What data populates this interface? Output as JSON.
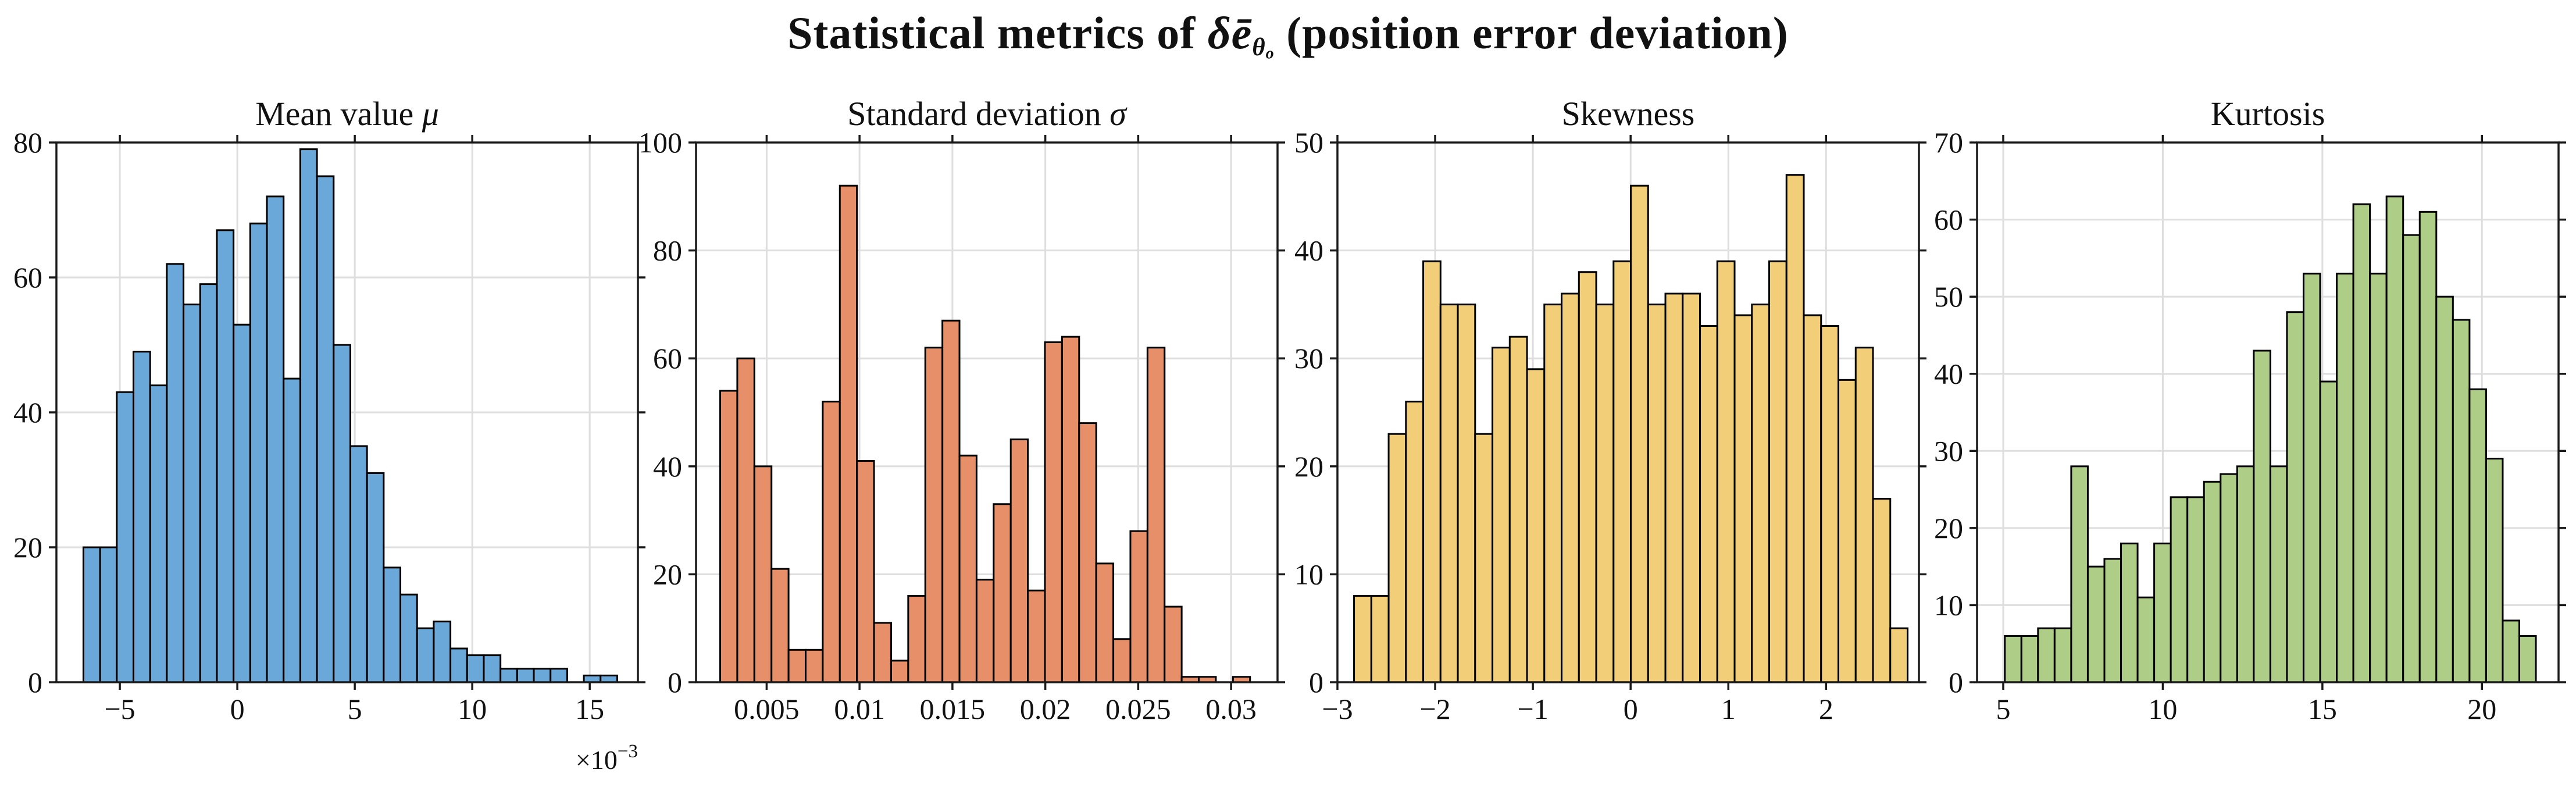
{
  "header": {
    "prefix": "Statistical metrics of ",
    "symbol": "δē",
    "symbol_sub": "θ",
    "symbol_subsub": "o",
    "suffix": " (position error deviation)"
  },
  "style": {
    "background": "#ffffff",
    "axis_color": "#1a1a1a",
    "grid_color": "#dedede",
    "bar_edge_color": "#000000",
    "text_color": "#111111"
  },
  "chart_data": [
    {
      "type": "bar",
      "title_text": "Mean value ",
      "title_math": "μ",
      "color": "#69a8d8",
      "legend_position": "none",
      "grid": true,
      "xlim": [
        -7.7,
        17.05
      ],
      "ylim": [
        0,
        80
      ],
      "yticks": [
        0,
        20,
        40,
        60,
        80
      ],
      "xticks": [
        {
          "v": -5,
          "label": "−5"
        },
        {
          "v": 0,
          "label": "0"
        },
        {
          "v": 5,
          "label": "5"
        },
        {
          "v": 10,
          "label": "10"
        },
        {
          "v": 15,
          "label": "15"
        }
      ],
      "x_exponent": {
        "text": "×10",
        "superscript": "−3"
      },
      "bin_start": -6.55,
      "bin_width": 0.71,
      "values": [
        20,
        20,
        43,
        49,
        44,
        62,
        56,
        59,
        67,
        53,
        68,
        72,
        45,
        79,
        75,
        50,
        35,
        31,
        17,
        13,
        8,
        9,
        5,
        4,
        4,
        2,
        2,
        2,
        2,
        0,
        1,
        1
      ]
    },
    {
      "type": "bar",
      "title_text": "Standard deviation ",
      "title_math": "σ",
      "color": "#e78f68",
      "legend_position": "none",
      "grid": true,
      "xlim": [
        0.0012,
        0.0325
      ],
      "ylim": [
        0,
        100
      ],
      "yticks": [
        0,
        20,
        40,
        60,
        80,
        100
      ],
      "xticks": [
        {
          "v": 0.005,
          "label": "0.005"
        },
        {
          "v": 0.01,
          "label": "0.01"
        },
        {
          "v": 0.015,
          "label": "0.015"
        },
        {
          "v": 0.02,
          "label": "0.02"
        },
        {
          "v": 0.025,
          "label": "0.025"
        },
        {
          "v": 0.03,
          "label": "0.03"
        }
      ],
      "bin_start": 0.0025,
      "bin_width": 0.00092,
      "values": [
        54,
        60,
        40,
        21,
        6,
        6,
        52,
        92,
        41,
        11,
        4,
        16,
        62,
        67,
        42,
        19,
        33,
        45,
        17,
        63,
        64,
        48,
        22,
        8,
        28,
        62,
        14,
        1,
        1,
        0,
        1
      ]
    },
    {
      "type": "bar",
      "title_text": "Skewness",
      "title_math": "",
      "color": "#f2ce78",
      "legend_position": "none",
      "grid": true,
      "xlim": [
        -3.0,
        2.95
      ],
      "ylim": [
        0,
        50
      ],
      "yticks": [
        0,
        10,
        20,
        30,
        40,
        50
      ],
      "xticks": [
        {
          "v": -3,
          "label": "−3"
        },
        {
          "v": -2,
          "label": "−2"
        },
        {
          "v": -1,
          "label": "−1"
        },
        {
          "v": 0,
          "label": "0"
        },
        {
          "v": 1,
          "label": "1"
        },
        {
          "v": 2,
          "label": "2"
        }
      ],
      "bin_start": -2.83,
      "bin_width": 0.177,
      "values": [
        8,
        8,
        23,
        26,
        39,
        35,
        35,
        23,
        31,
        32,
        29,
        35,
        36,
        38,
        35,
        39,
        46,
        35,
        36,
        36,
        33,
        39,
        34,
        35,
        39,
        47,
        34,
        33,
        28,
        31,
        17,
        5
      ]
    },
    {
      "type": "bar",
      "title_text": "Kurtosis",
      "title_math": "",
      "color": "#aecd86",
      "legend_position": "none",
      "grid": true,
      "xlim": [
        4.18,
        22.4
      ],
      "ylim": [
        0,
        70
      ],
      "yticks": [
        0,
        10,
        20,
        30,
        40,
        50,
        60,
        70
      ],
      "xticks": [
        {
          "v": 5,
          "label": "5"
        },
        {
          "v": 10,
          "label": "10"
        },
        {
          "v": 15,
          "label": "15"
        },
        {
          "v": 20,
          "label": "20"
        }
      ],
      "bin_start": 5.05,
      "bin_width": 0.52,
      "values": [
        6,
        6,
        7,
        7,
        28,
        15,
        16,
        18,
        11,
        18,
        24,
        24,
        26,
        27,
        28,
        43,
        28,
        48,
        53,
        39,
        53,
        62,
        53,
        63,
        58,
        61,
        50,
        47,
        38,
        29,
        8,
        6
      ]
    }
  ]
}
